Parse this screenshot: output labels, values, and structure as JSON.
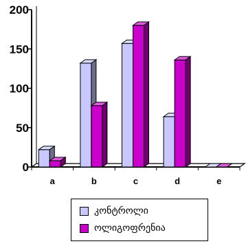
{
  "chart_data": {
    "type": "bar",
    "categories": [
      "a",
      "b",
      "c",
      "d",
      "e"
    ],
    "series": [
      {
        "name": "კონტროლი",
        "color": "#C8C8FF",
        "values": [
          22,
          132,
          157,
          64,
          0
        ]
      },
      {
        "name": "ოლიგოფრენია",
        "color": "#CC00CC",
        "values": [
          8,
          78,
          180,
          136,
          0
        ]
      }
    ],
    "ylim": [
      0,
      200
    ],
    "yticks": [
      "0",
      "50",
      "100",
      "150",
      "200"
    ],
    "grid": false,
    "legend_position": "bottom",
    "three_d": true
  }
}
